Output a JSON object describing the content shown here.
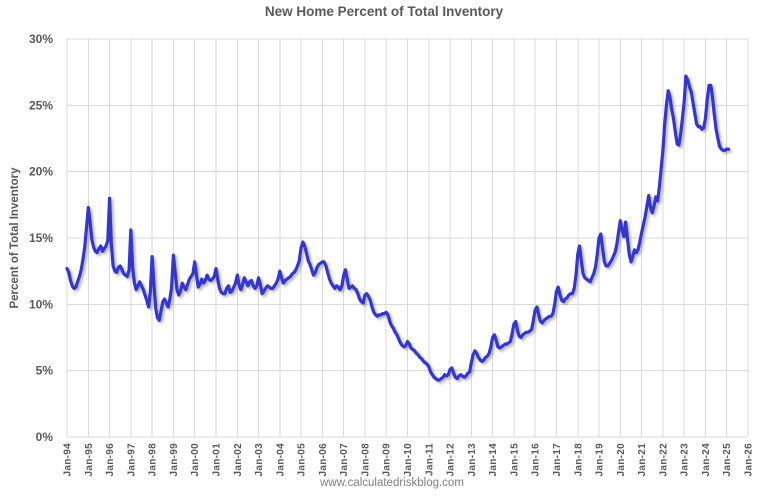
{
  "title": "New Home Percent of Total Inventory",
  "footer": "www.calculatedriskblog.com",
  "colors": {
    "background": "#ffffff",
    "line": "#3535d1",
    "grid": "#d9d9d9",
    "text": "#595959",
    "muted": "#7f7f7f"
  },
  "chart_data": {
    "type": "line",
    "title": "New Home Percent of Total Inventory",
    "xlabel": "",
    "ylabel": "Percent of Total Inventory",
    "ylim": [
      0,
      30
    ],
    "ytick_step": 5,
    "y_tick_labels": [
      "0%",
      "5%",
      "10%",
      "15%",
      "20%",
      "25%",
      "30%"
    ],
    "x_tick_labels": [
      "Jan-94",
      "Jan-95",
      "Jan-96",
      "Jan-97",
      "Jan-98",
      "Jan-99",
      "Jan-00",
      "Jan-01",
      "Jan-02",
      "Jan-03",
      "Jan-04",
      "Jan-05",
      "Jan-06",
      "Jan-07",
      "Jan-08",
      "Jan-09",
      "Jan-10",
      "Jan-11",
      "Jan-12",
      "Jan-13",
      "Jan-14",
      "Jan-15",
      "Jan-16",
      "Jan-17",
      "Jan-18",
      "Jan-19",
      "Jan-20",
      "Jan-21",
      "Jan-22",
      "Jan-23",
      "Jan-24",
      "Jan-25",
      "Jan-26"
    ],
    "grid": true,
    "legend": false,
    "series": [
      {
        "name": "New Home Percent of Total Inventory",
        "start": "Jan-94",
        "frequency": "monthly",
        "unit": "percent",
        "values": [
          12.7,
          12.4,
          11.8,
          11.4,
          11.2,
          11.3,
          11.7,
          12.1,
          12.6,
          13.4,
          14.3,
          15.8,
          17.3,
          16.2,
          14.9,
          14.3,
          14.0,
          13.9,
          14.2,
          14.4,
          14.0,
          14.2,
          14.4,
          14.8,
          18.0,
          14.6,
          12.9,
          12.5,
          12.4,
          12.8,
          12.9,
          12.6,
          12.3,
          12.2,
          12.1,
          12.6,
          15.6,
          12.8,
          11.6,
          11.1,
          11.4,
          11.7,
          11.4,
          11.1,
          10.7,
          10.3,
          9.8,
          11.0,
          13.6,
          11.5,
          9.7,
          9.0,
          8.8,
          9.5,
          10.2,
          10.4,
          10.1,
          9.8,
          10.4,
          11.3,
          13.7,
          12.4,
          11.1,
          10.7,
          11.0,
          11.6,
          11.3,
          11.1,
          11.5,
          11.9,
          12.1,
          12.3,
          13.2,
          12.2,
          11.3,
          11.5,
          11.9,
          11.6,
          11.8,
          12.2,
          11.9,
          11.8,
          11.9,
          12.1,
          12.7,
          11.9,
          11.2,
          10.9,
          10.8,
          10.8,
          11.2,
          11.4,
          10.9,
          11.0,
          11.3,
          11.6,
          12.2,
          11.5,
          11.1,
          11.5,
          12.0,
          11.7,
          11.4,
          11.7,
          11.8,
          11.4,
          11.2,
          11.4,
          12.0,
          11.5,
          10.8,
          11.0,
          11.2,
          11.4,
          11.3,
          11.2,
          11.2,
          11.4,
          11.6,
          11.9,
          12.5,
          12.0,
          11.6,
          11.8,
          11.9,
          12.0,
          12.1,
          12.3,
          12.4,
          12.6,
          12.9,
          13.3,
          14.3,
          14.7,
          14.4,
          13.9,
          13.3,
          13.0,
          12.6,
          12.2,
          12.4,
          12.8,
          13.0,
          13.1,
          13.2,
          13.2,
          12.9,
          12.4,
          11.9,
          11.6,
          11.4,
          11.2,
          11.4,
          11.3,
          11.1,
          11.4,
          12.2,
          12.6,
          11.9,
          11.2,
          11.3,
          11.4,
          11.2,
          11.1,
          10.8,
          10.4,
          10.2,
          10.1,
          10.7,
          10.8,
          10.6,
          10.3,
          9.8,
          9.4,
          9.2,
          9.1,
          9.2,
          9.2,
          9.3,
          9.3,
          9.4,
          9.2,
          8.7,
          8.4,
          8.2,
          7.9,
          7.7,
          7.4,
          7.1,
          6.9,
          6.8,
          6.9,
          7.2,
          7.0,
          6.7,
          6.6,
          6.5,
          6.3,
          6.2,
          6.0,
          5.9,
          5.7,
          5.6,
          5.5,
          5.3,
          4.9,
          4.7,
          4.5,
          4.4,
          4.3,
          4.3,
          4.4,
          4.5,
          4.7,
          4.6,
          4.7,
          5.1,
          5.2,
          4.8,
          4.5,
          4.4,
          4.6,
          4.7,
          4.6,
          4.5,
          4.6,
          4.8,
          4.9,
          5.6,
          6.2,
          6.5,
          6.3,
          6.0,
          5.8,
          5.7,
          5.8,
          6.0,
          6.1,
          6.3,
          6.8,
          7.5,
          7.7,
          7.3,
          6.8,
          6.7,
          6.8,
          6.9,
          7.0,
          7.0,
          7.1,
          7.2,
          7.8,
          8.5,
          8.7,
          8.0,
          7.6,
          7.5,
          7.7,
          7.8,
          7.9,
          7.9,
          8.0,
          8.1,
          8.8,
          9.6,
          9.8,
          9.2,
          8.7,
          8.6,
          8.8,
          8.9,
          9.0,
          9.1,
          9.1,
          9.3,
          10.0,
          11.0,
          11.3,
          10.7,
          10.3,
          10.2,
          10.4,
          10.5,
          10.7,
          10.8,
          10.8,
          11.2,
          12.2,
          13.8,
          14.4,
          13.3,
          12.3,
          12.0,
          11.9,
          11.8,
          11.7,
          12.0,
          12.3,
          12.8,
          13.8,
          15.0,
          15.3,
          14.2,
          13.2,
          12.9,
          12.9,
          13.1,
          13.3,
          13.6,
          13.9,
          14.5,
          15.4,
          16.3,
          15.6,
          15.1,
          16.2,
          15.0,
          13.8,
          13.2,
          13.6,
          14.1,
          13.9,
          14.1,
          14.7,
          15.4,
          16.0,
          16.6,
          17.4,
          18.2,
          17.3,
          16.9,
          17.4,
          18.1,
          17.8,
          18.8,
          20.2,
          21.6,
          23.5,
          25.0,
          26.1,
          25.6,
          24.7,
          24.0,
          23.0,
          22.1,
          22.0,
          22.8,
          24.0,
          25.3,
          27.2,
          26.9,
          26.4,
          26.0,
          25.2,
          24.4,
          23.6,
          23.4,
          23.4,
          23.2,
          23.3,
          24.0,
          25.4,
          26.5,
          26.5,
          25.6,
          24.3,
          23.2,
          22.5,
          21.9,
          21.7,
          21.6,
          21.6,
          21.7,
          21.7
        ]
      }
    ]
  }
}
